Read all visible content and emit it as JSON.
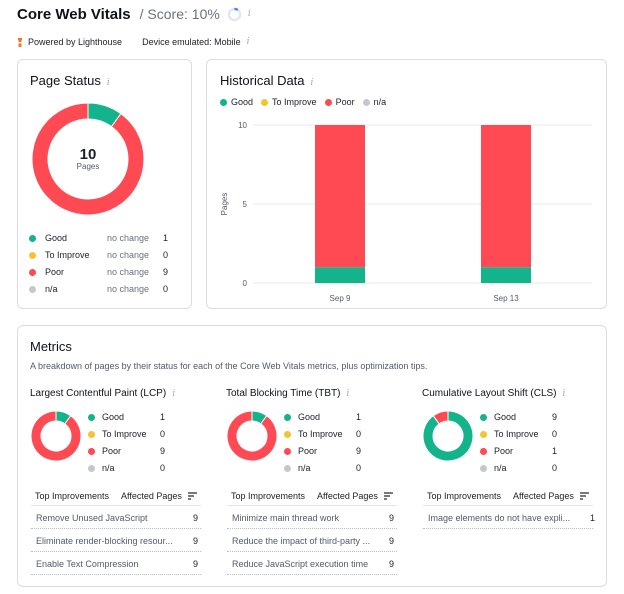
{
  "header": {
    "title": "Core Web Vitals",
    "score": "/ Score: 10%",
    "score_value": 10
  },
  "subheader": {
    "powered_by": "Powered by Lighthouse",
    "device": "Device emulated: Mobile"
  },
  "colors": {
    "good": "#13b38b",
    "to_improve": "#f5c232",
    "poor": "#ff4953",
    "na": "#c4c7cf"
  },
  "page_status": {
    "title": "Page Status",
    "total": "10",
    "total_label": "Pages",
    "rows": [
      {
        "label": "Good",
        "change": "no change",
        "count": "1",
        "value": 1
      },
      {
        "label": "To Improve",
        "change": "no change",
        "count": "0",
        "value": 0
      },
      {
        "label": "Poor",
        "change": "no change",
        "count": "9",
        "value": 9
      },
      {
        "label": "n/a",
        "change": "no change",
        "count": "0",
        "value": 0
      }
    ]
  },
  "historical": {
    "title": "Historical Data",
    "legend": [
      "Good",
      "To Improve",
      "Poor",
      "n/a"
    ]
  },
  "chart_data": {
    "type": "bar",
    "stacked": true,
    "categories": [
      "Sep 9",
      "Sep 13"
    ],
    "series": [
      {
        "name": "Good",
        "values": [
          1,
          1
        ]
      },
      {
        "name": "To Improve",
        "values": [
          0,
          0
        ]
      },
      {
        "name": "Poor",
        "values": [
          9,
          9
        ]
      },
      {
        "name": "n/a",
        "values": [
          0,
          0
        ]
      }
    ],
    "ylabel": "Pages",
    "ylim": [
      0,
      10
    ],
    "yticks": [
      "0",
      "5",
      "10"
    ],
    "grid": true,
    "legend": "top-left"
  },
  "metrics": {
    "title": "Metrics",
    "description": "A breakdown of pages by their status for each of the Core Web Vitals metrics, plus optimization tips.",
    "col_improvements": "Top Improvements",
    "col_affected": "Affected Pages",
    "items": [
      {
        "title": "Largest Contentful Paint (LCP)",
        "legend": [
          {
            "label": "Good",
            "count": "1",
            "value": 1
          },
          {
            "label": "To Improve",
            "count": "0",
            "value": 0
          },
          {
            "label": "Poor",
            "count": "9",
            "value": 9
          },
          {
            "label": "n/a",
            "count": "0",
            "value": 0
          }
        ],
        "improvements": [
          {
            "text": "Remove Unused JavaScript",
            "count": "9"
          },
          {
            "text": "Eliminate render-blocking resour...",
            "count": "9"
          },
          {
            "text": "Enable Text Compression",
            "count": "9"
          }
        ]
      },
      {
        "title": "Total Blocking Time (TBT)",
        "legend": [
          {
            "label": "Good",
            "count": "1",
            "value": 1
          },
          {
            "label": "To Improve",
            "count": "0",
            "value": 0
          },
          {
            "label": "Poor",
            "count": "9",
            "value": 9
          },
          {
            "label": "n/a",
            "count": "0",
            "value": 0
          }
        ],
        "improvements": [
          {
            "text": "Minimize main thread work",
            "count": "9"
          },
          {
            "text": "Reduce the impact of third-party ...",
            "count": "9"
          },
          {
            "text": "Reduce JavaScript execution time",
            "count": "9"
          }
        ]
      },
      {
        "title": "Cumulative Layout Shift (CLS)",
        "legend": [
          {
            "label": "Good",
            "count": "9",
            "value": 9
          },
          {
            "label": "To Improve",
            "count": "0",
            "value": 0
          },
          {
            "label": "Poor",
            "count": "1",
            "value": 1
          },
          {
            "label": "n/a",
            "count": "0",
            "value": 0
          }
        ],
        "improvements": [
          {
            "text": "Image elements do not have expli...",
            "count": "1"
          }
        ]
      }
    ]
  }
}
